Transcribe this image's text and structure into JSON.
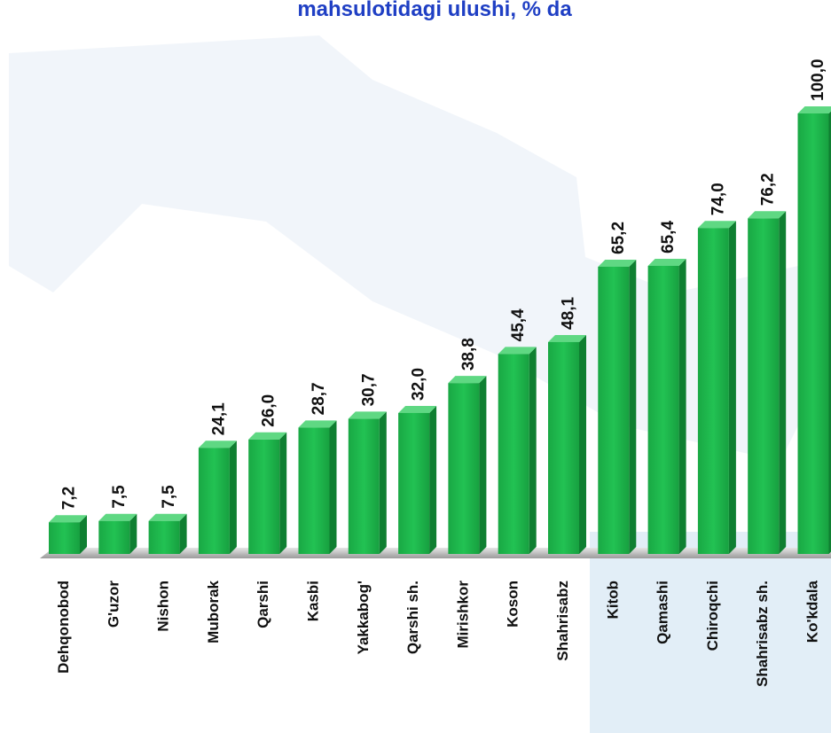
{
  "chart_data": {
    "type": "bar",
    "title": "mahsulotidagi ulushi, % da",
    "categories": [
      "Dehqonobod",
      "G'uzor",
      "Nishon",
      "Muborak",
      "Qarshi",
      "Kasbi",
      "Yakkabog'",
      "Qarshi sh.",
      "Mirishkor",
      "Koson",
      "Shahrisabz",
      "Kitob",
      "Qamashi",
      "Chiroqchi",
      "Shahrisabz sh.",
      "Ko'kdala"
    ],
    "values": [
      7.2,
      7.5,
      7.5,
      24.1,
      26.0,
      28.7,
      30.7,
      32.0,
      38.8,
      45.4,
      48.1,
      65.2,
      65.4,
      74.0,
      76.2,
      100.0
    ],
    "value_labels": [
      "7,2",
      "7,5",
      "7,5",
      "24,1",
      "26,0",
      "28,7",
      "30,7",
      "32,0",
      "38,8",
      "45,4",
      "48,1",
      "65,2",
      "65,4",
      "74,0",
      "76,2",
      "100,0"
    ],
    "color": "#1db34a"
  }
}
